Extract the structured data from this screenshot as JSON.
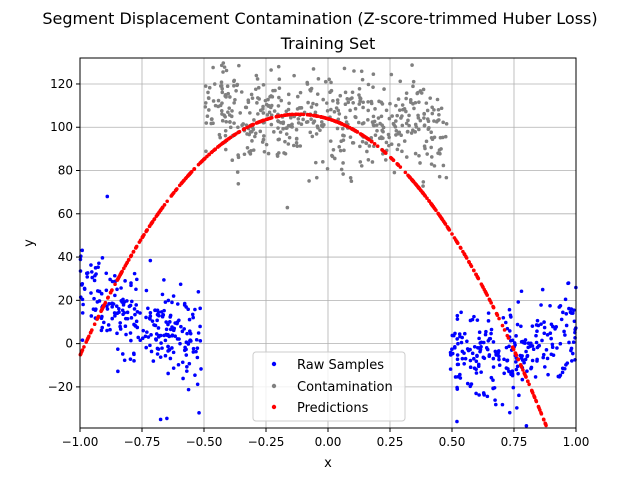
{
  "chart_data": {
    "type": "scatter",
    "title": "Segment Displacement Contamination (Z-score-trimmed Huber Loss)",
    "subtitle": "Training Set",
    "xlabel": "x",
    "ylabel": "y",
    "xlim": [
      -1.0,
      1.0
    ],
    "ylim": [
      -39,
      132
    ],
    "xticks": [
      -1.0,
      -0.75,
      -0.5,
      -0.25,
      0.0,
      0.25,
      0.5,
      0.75,
      1.0
    ],
    "xtick_labels": [
      "−1.00",
      "−0.75",
      "−0.50",
      "−0.25",
      "0.00",
      "0.25",
      "0.50",
      "0.75",
      "1.00"
    ],
    "yticks": [
      -20,
      0,
      20,
      40,
      60,
      80,
      100,
      120
    ],
    "ytick_labels": [
      "−20",
      "0",
      "20",
      "40",
      "60",
      "80",
      "100",
      "120"
    ],
    "grid": true,
    "legend": {
      "placement": "lower-center",
      "entries": [
        "Raw Samples",
        "Contamination",
        "Predictions"
      ]
    },
    "series": [
      {
        "name": "Raw Samples",
        "color": "#0000ff",
        "clusters": [
          {
            "x_range": [
              -1.0,
              -0.51
            ],
            "y_trend": [
              [
                -1.0,
                30
              ],
              [
                -0.75,
                10
              ],
              [
                -0.51,
                0
              ]
            ],
            "y_spread": 10,
            "count": 260
          },
          {
            "x_range": [
              0.49,
              1.0
            ],
            "y_trend": [
              [
                0.49,
                -5
              ],
              [
                0.75,
                -5
              ],
              [
                1.0,
                5
              ]
            ],
            "y_spread": 10,
            "count": 260
          }
        ],
        "outliers": [
          {
            "x": -0.89,
            "y": 68
          },
          {
            "x": -0.52,
            "y": -32
          },
          {
            "x": 0.52,
            "y": -36
          },
          {
            "x": 0.8,
            "y": -38
          },
          {
            "x": 0.97,
            "y": 28
          }
        ]
      },
      {
        "name": "Contamination",
        "color": "#808080",
        "clusters": [
          {
            "x_range": [
              -0.5,
              0.48
            ],
            "y_trend": [
              [
                -0.5,
                108
              ],
              [
                0.0,
                104
              ],
              [
                0.48,
                100
              ]
            ],
            "y_spread": 11,
            "count": 500
          }
        ]
      },
      {
        "name": "Predictions",
        "color": "#ff0000",
        "model": {
          "form": "quadratic",
          "vertex_x": -0.12,
          "vertex_y": 106,
          "a": -144
        },
        "x_range": [
          -1.0,
          1.0
        ],
        "count": 520
      }
    ]
  }
}
